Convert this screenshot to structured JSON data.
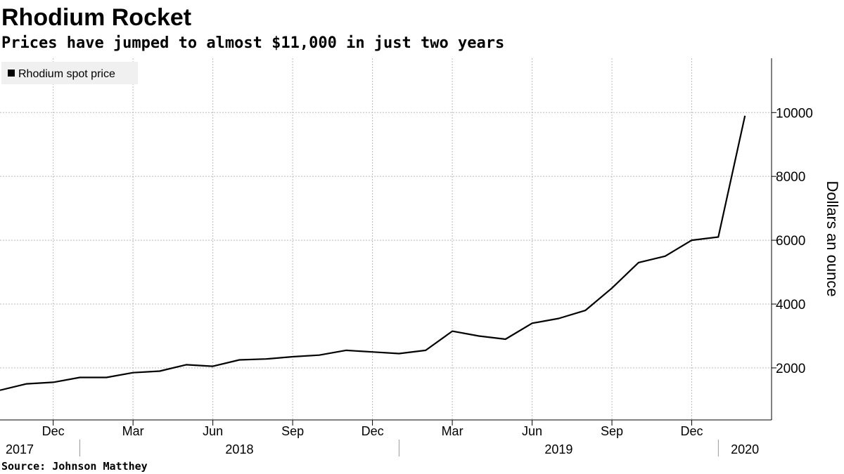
{
  "chart_data": {
    "type": "line",
    "title": "Rhodium Rocket",
    "subtitle": "Prices have jumped to almost $11,000 in just two years",
    "source": "Source: Johnson Matthey",
    "y_axis_label": "Dollars an ounce",
    "x": [
      "2017-10",
      "2017-11",
      "2017-12",
      "2018-01",
      "2018-02",
      "2018-03",
      "2018-04",
      "2018-05",
      "2018-06",
      "2018-07",
      "2018-08",
      "2018-09",
      "2018-10",
      "2018-11",
      "2018-12",
      "2019-01",
      "2019-02",
      "2019-03",
      "2019-04",
      "2019-05",
      "2019-06",
      "2019-07",
      "2019-08",
      "2019-09",
      "2019-10",
      "2019-11",
      "2019-12",
      "2020-01",
      "2020-02"
    ],
    "series": [
      {
        "name": "Rhodium spot price",
        "color": "#000000",
        "values": [
          1300,
          1500,
          1550,
          1700,
          1700,
          1850,
          1900,
          2100,
          2050,
          2250,
          2280,
          2350,
          2400,
          2550,
          2500,
          2450,
          2550,
          3150,
          3000,
          2900,
          3400,
          3550,
          3800,
          4500,
          5300,
          5500,
          6000,
          6100,
          9900
        ]
      }
    ],
    "xlim": [
      "2017-10",
      "2020-03"
    ],
    "xticks": [
      {
        "value": "2017-12",
        "label": "Dec"
      },
      {
        "value": "2018-03",
        "label": "Mar"
      },
      {
        "value": "2018-06",
        "label": "Jun"
      },
      {
        "value": "2018-09",
        "label": "Sep"
      },
      {
        "value": "2018-12",
        "label": "Dec"
      },
      {
        "value": "2019-03",
        "label": "Mar"
      },
      {
        "value": "2019-06",
        "label": "Jun"
      },
      {
        "value": "2019-09",
        "label": "Sep"
      },
      {
        "value": "2019-12",
        "label": "Dec"
      }
    ],
    "year_labels": [
      "2017",
      "2018",
      "2019",
      "2020"
    ],
    "ylim": [
      370,
      11700
    ],
    "yticks": [
      2000,
      4000,
      6000,
      8000,
      10000
    ],
    "grid": true,
    "legend": "top-left"
  }
}
